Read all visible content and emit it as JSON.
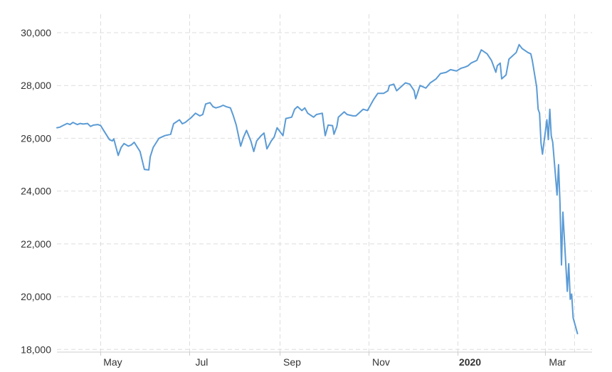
{
  "chart_data": {
    "type": "line",
    "title": "",
    "xlabel": "",
    "ylabel": "",
    "ylim": [
      17900,
      30700
    ],
    "x_tick_labels": [
      {
        "date": "2019-05-01",
        "label": "May",
        "bold": false
      },
      {
        "date": "2019-07-01",
        "label": "Jul",
        "bold": false
      },
      {
        "date": "2019-09-01",
        "label": "Sep",
        "bold": false
      },
      {
        "date": "2019-11-01",
        "label": "Nov",
        "bold": false
      },
      {
        "date": "2020-01-01",
        "label": "2020",
        "bold": true
      },
      {
        "date": "2020-03-01",
        "label": "Mar",
        "bold": false
      }
    ],
    "x_label_dates": [
      "2019-05-01",
      "2019-07-01",
      "2019-09-01",
      "2019-11-01",
      "2020-01-01",
      "2020-03-01",
      "2020-03-21"
    ],
    "x_range": [
      "2019-04-01",
      "2020-04-02"
    ],
    "y_ticks": [
      {
        "value": 30000,
        "label": "30,000"
      },
      {
        "value": 28000,
        "label": "28,000"
      },
      {
        "value": 26000,
        "label": "26,000"
      },
      {
        "value": 24000,
        "label": "24,000"
      },
      {
        "value": 22000,
        "label": "22,000"
      },
      {
        "value": 20000,
        "label": "20,000"
      },
      {
        "value": 18000,
        "label": "18,000"
      }
    ],
    "grid": true,
    "colors": {
      "line": "#5b9bd5",
      "grid": "#dddddd",
      "text": "#333333"
    },
    "series": [
      {
        "points": [
          [
            "2019-04-01",
            26400
          ],
          [
            "2019-04-03",
            26420
          ],
          [
            "2019-04-05",
            26480
          ],
          [
            "2019-04-08",
            26560
          ],
          [
            "2019-04-10",
            26520
          ],
          [
            "2019-04-12",
            26600
          ],
          [
            "2019-04-15",
            26520
          ],
          [
            "2019-04-17",
            26560
          ],
          [
            "2019-04-19",
            26540
          ],
          [
            "2019-04-22",
            26560
          ],
          [
            "2019-04-24",
            26450
          ],
          [
            "2019-04-26",
            26500
          ],
          [
            "2019-04-29",
            26520
          ],
          [
            "2019-05-01",
            26480
          ],
          [
            "2019-05-03",
            26300
          ],
          [
            "2019-05-07",
            25950
          ],
          [
            "2019-05-09",
            25900
          ],
          [
            "2019-05-10",
            25980
          ],
          [
            "2019-05-13",
            25350
          ],
          [
            "2019-05-15",
            25650
          ],
          [
            "2019-05-17",
            25800
          ],
          [
            "2019-05-20",
            25700
          ],
          [
            "2019-05-22",
            25750
          ],
          [
            "2019-05-24",
            25850
          ],
          [
            "2019-05-28",
            25500
          ],
          [
            "2019-05-31",
            24820
          ],
          [
            "2019-06-03",
            24800
          ],
          [
            "2019-06-04",
            25300
          ],
          [
            "2019-06-06",
            25650
          ],
          [
            "2019-06-10",
            26000
          ],
          [
            "2019-06-12",
            26050
          ],
          [
            "2019-06-14",
            26100
          ],
          [
            "2019-06-18",
            26150
          ],
          [
            "2019-06-20",
            26550
          ],
          [
            "2019-06-24",
            26700
          ],
          [
            "2019-06-26",
            26550
          ],
          [
            "2019-06-28",
            26600
          ],
          [
            "2019-07-02",
            26780
          ],
          [
            "2019-07-05",
            26950
          ],
          [
            "2019-07-08",
            26850
          ],
          [
            "2019-07-10",
            26900
          ],
          [
            "2019-07-12",
            27300
          ],
          [
            "2019-07-15",
            27350
          ],
          [
            "2019-07-17",
            27200
          ],
          [
            "2019-07-19",
            27150
          ],
          [
            "2019-07-22",
            27200
          ],
          [
            "2019-07-24",
            27250
          ],
          [
            "2019-07-26",
            27200
          ],
          [
            "2019-07-29",
            27150
          ],
          [
            "2019-07-31",
            26850
          ],
          [
            "2019-08-02",
            26500
          ],
          [
            "2019-08-05",
            25700
          ],
          [
            "2019-08-07",
            26050
          ],
          [
            "2019-08-09",
            26300
          ],
          [
            "2019-08-12",
            25900
          ],
          [
            "2019-08-14",
            25500
          ],
          [
            "2019-08-16",
            25900
          ],
          [
            "2019-08-19",
            26100
          ],
          [
            "2019-08-21",
            26200
          ],
          [
            "2019-08-23",
            25600
          ],
          [
            "2019-08-26",
            25900
          ],
          [
            "2019-08-28",
            26050
          ],
          [
            "2019-08-30",
            26400
          ],
          [
            "2019-09-03",
            26100
          ],
          [
            "2019-09-05",
            26750
          ],
          [
            "2019-09-09",
            26800
          ],
          [
            "2019-09-11",
            27100
          ],
          [
            "2019-09-13",
            27200
          ],
          [
            "2019-09-16",
            27050
          ],
          [
            "2019-09-18",
            27150
          ],
          [
            "2019-09-20",
            26950
          ],
          [
            "2019-09-24",
            26800
          ],
          [
            "2019-09-26",
            26900
          ],
          [
            "2019-09-30",
            26950
          ],
          [
            "2019-10-02",
            26100
          ],
          [
            "2019-10-04",
            26500
          ],
          [
            "2019-10-07",
            26480
          ],
          [
            "2019-10-08",
            26150
          ],
          [
            "2019-10-10",
            26450
          ],
          [
            "2019-10-11",
            26800
          ],
          [
            "2019-10-15",
            27000
          ],
          [
            "2019-10-17",
            26900
          ],
          [
            "2019-10-21",
            26850
          ],
          [
            "2019-10-23",
            26850
          ],
          [
            "2019-10-25",
            26950
          ],
          [
            "2019-10-28",
            27100
          ],
          [
            "2019-10-31",
            27050
          ],
          [
            "2019-11-04",
            27450
          ],
          [
            "2019-11-07",
            27700
          ],
          [
            "2019-11-11",
            27700
          ],
          [
            "2019-11-14",
            27800
          ],
          [
            "2019-11-15",
            28000
          ],
          [
            "2019-11-18",
            28050
          ],
          [
            "2019-11-20",
            27800
          ],
          [
            "2019-11-22",
            27900
          ],
          [
            "2019-11-26",
            28100
          ],
          [
            "2019-11-29",
            28050
          ],
          [
            "2019-12-02",
            27800
          ],
          [
            "2019-12-03",
            27500
          ],
          [
            "2019-12-06",
            28000
          ],
          [
            "2019-12-10",
            27900
          ],
          [
            "2019-12-13",
            28100
          ],
          [
            "2019-12-17",
            28250
          ],
          [
            "2019-12-20",
            28450
          ],
          [
            "2019-12-24",
            28500
          ],
          [
            "2019-12-27",
            28600
          ],
          [
            "2019-12-31",
            28550
          ],
          [
            "2020-01-03",
            28650
          ],
          [
            "2020-01-06",
            28700
          ],
          [
            "2020-01-08",
            28750
          ],
          [
            "2020-01-10",
            28850
          ],
          [
            "2020-01-14",
            28950
          ],
          [
            "2020-01-17",
            29350
          ],
          [
            "2020-01-21",
            29200
          ],
          [
            "2020-01-24",
            28950
          ],
          [
            "2020-01-27",
            28500
          ],
          [
            "2020-01-28",
            28750
          ],
          [
            "2020-01-30",
            28850
          ],
          [
            "2020-01-31",
            28250
          ],
          [
            "2020-02-03",
            28400
          ],
          [
            "2020-02-05",
            29000
          ],
          [
            "2020-02-07",
            29100
          ],
          [
            "2020-02-10",
            29250
          ],
          [
            "2020-02-12",
            29550
          ],
          [
            "2020-02-14",
            29400
          ],
          [
            "2020-02-18",
            29250
          ],
          [
            "2020-02-20",
            29200
          ],
          [
            "2020-02-21",
            28950
          ],
          [
            "2020-02-24",
            27950
          ],
          [
            "2020-02-25",
            27100
          ],
          [
            "2020-02-26",
            26950
          ],
          [
            "2020-02-27",
            25800
          ],
          [
            "2020-02-28",
            25400
          ],
          [
            "2020-03-02",
            26700
          ],
          [
            "2020-03-03",
            25950
          ],
          [
            "2020-03-04",
            27100
          ],
          [
            "2020-03-05",
            26100
          ],
          [
            "2020-03-06",
            25850
          ],
          [
            "2020-03-09",
            23850
          ],
          [
            "2020-03-10",
            25000
          ],
          [
            "2020-03-11",
            23550
          ],
          [
            "2020-03-12",
            21200
          ],
          [
            "2020-03-13",
            23200
          ],
          [
            "2020-03-16",
            20200
          ],
          [
            "2020-03-17",
            21250
          ],
          [
            "2020-03-18",
            19900
          ],
          [
            "2020-03-19",
            20100
          ],
          [
            "2020-03-20",
            19200
          ],
          [
            "2020-03-23",
            18600
          ]
        ]
      }
    ]
  }
}
